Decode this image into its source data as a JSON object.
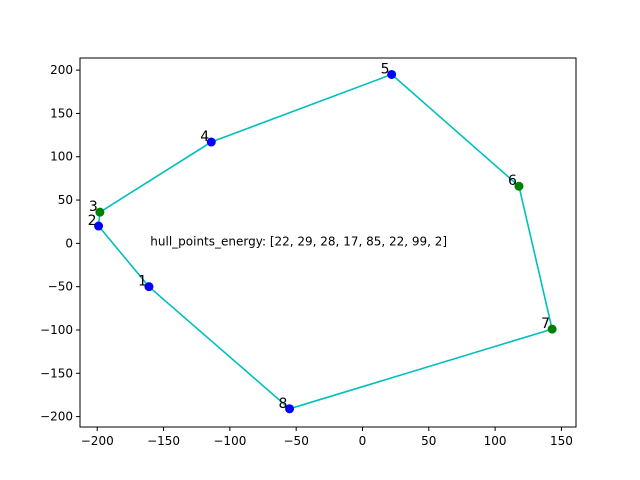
{
  "chart_data": {
    "type": "scatter",
    "title": "",
    "xlabel": "",
    "ylabel": "",
    "xlim": [
      -213,
      161
    ],
    "ylim": [
      -212,
      214
    ],
    "x_ticks": [
      -200,
      -150,
      -100,
      -50,
      0,
      50,
      100,
      150
    ],
    "y_ticks": [
      -200,
      -150,
      -100,
      -50,
      0,
      50,
      100,
      150,
      200
    ],
    "x_tick_labels": [
      "−200",
      "−150",
      "−100",
      "−50",
      "0",
      "50",
      "100",
      "150"
    ],
    "y_tick_labels": [
      "−200",
      "−150",
      "−100",
      "−50",
      "0",
      "50",
      "100",
      "150",
      "200"
    ],
    "grid": false,
    "points": [
      {
        "label": "1",
        "x": -161,
        "y": -50,
        "color": "#0000ff"
      },
      {
        "label": "2",
        "x": -199,
        "y": 20,
        "color": "#0000ff"
      },
      {
        "label": "3",
        "x": -198,
        "y": 36,
        "color": "#008000"
      },
      {
        "label": "4",
        "x": -114,
        "y": 117,
        "color": "#0000ff"
      },
      {
        "label": "5",
        "x": 22,
        "y": 195,
        "color": "#0000ff"
      },
      {
        "label": "6",
        "x": 118,
        "y": 66,
        "color": "#008000"
      },
      {
        "label": "7",
        "x": 143,
        "y": -99,
        "color": "#008000"
      },
      {
        "label": "8",
        "x": -55,
        "y": -191,
        "color": "#0000ff"
      }
    ],
    "hull_order": [
      2,
      3,
      4,
      5,
      6,
      7,
      8,
      1,
      2
    ],
    "hull_color": "#00bfbf",
    "annotation": {
      "text": "hull_points_energy: [22, 29, 28, 17, 85, 22, 99, 2]",
      "x": -160,
      "y": 0
    }
  }
}
